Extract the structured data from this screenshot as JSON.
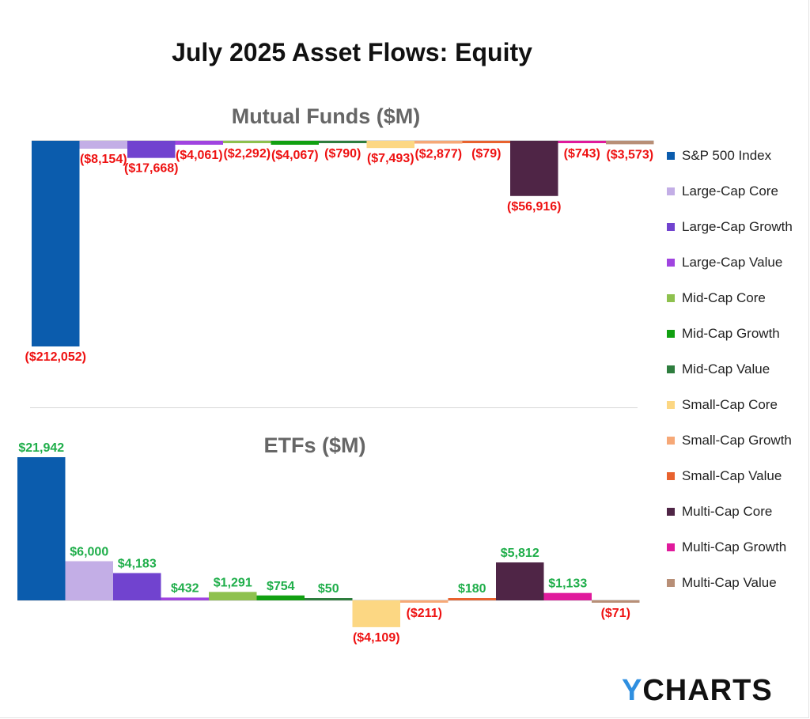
{
  "title": "July 2025 Asset Flows: Equity",
  "brand": {
    "mark": "Y",
    "rest": "CHARTS",
    "accent": "#2f8fe0"
  },
  "chart_data": [
    {
      "type": "bar",
      "title": "Mutual Funds ($M)",
      "categories": [
        "S&P 500 Index",
        "Large-Cap Core",
        "Large-Cap Growth",
        "Large-Cap Value",
        "Mid-Cap Core",
        "Mid-Cap Growth",
        "Mid-Cap Value",
        "Small-Cap Core",
        "Small-Cap Growth",
        "Small-Cap Value",
        "Multi-Cap Core",
        "Multi-Cap Growth",
        "Multi-Cap Value"
      ],
      "values": [
        -212052,
        -8154,
        -17668,
        -4061,
        -2292,
        -4067,
        -790,
        -7493,
        -2877,
        -79,
        -56916,
        -743,
        -3573
      ],
      "labels": [
        "($212,052)",
        "($8,154)",
        "($17,668)",
        "($4,061)",
        "($2,292)",
        "($4,067)",
        "($790)",
        "($7,493)",
        "($2,877)",
        "($79)",
        "($56,916)",
        "($743)",
        "($3,573)"
      ],
      "ylim": [
        -212052,
        0
      ],
      "grid": false,
      "legend": "right"
    },
    {
      "type": "bar",
      "title": "ETFs ($M)",
      "categories": [
        "S&P 500 Index",
        "Large-Cap Core",
        "Large-Cap Growth",
        "Large-Cap Value",
        "Mid-Cap Core",
        "Mid-Cap Growth",
        "Mid-Cap Value",
        "Small-Cap Core",
        "Small-Cap Growth",
        "Small-Cap Value",
        "Multi-Cap Core",
        "Multi-Cap Growth",
        "Multi-Cap Value"
      ],
      "values": [
        21942,
        6000,
        4183,
        432,
        1291,
        754,
        50,
        -4109,
        -211,
        180,
        5812,
        1133,
        -71
      ],
      "labels": [
        "$21,942",
        "$6,000",
        "$4,183",
        "$432",
        "$1,291",
        "$754",
        "$50",
        "($4,109)",
        "($211)",
        "$180",
        "$5,812",
        "$1,133",
        "($71)"
      ],
      "ylim": [
        -4109,
        21942
      ],
      "grid": false,
      "legend": "right"
    }
  ],
  "legend": [
    {
      "label": "S&P 500 Index",
      "color": "#0b5cad"
    },
    {
      "label": "Large-Cap Core",
      "color": "#c3aee6"
    },
    {
      "label": "Large-Cap Growth",
      "color": "#7143cf"
    },
    {
      "label": "Large-Cap Value",
      "color": "#a044e0"
    },
    {
      "label": "Mid-Cap Core",
      "color": "#8ec14e"
    },
    {
      "label": "Mid-Cap Growth",
      "color": "#11a011"
    },
    {
      "label": "Mid-Cap Value",
      "color": "#2e7d3e"
    },
    {
      "label": "Small-Cap Core",
      "color": "#fcd783"
    },
    {
      "label": "Small-Cap Growth",
      "color": "#f6a877"
    },
    {
      "label": "Small-Cap Value",
      "color": "#e8622e"
    },
    {
      "label": "Multi-Cap Core",
      "color": "#4f2546"
    },
    {
      "label": "Multi-Cap Growth",
      "color": "#e01a9c"
    },
    {
      "label": "Multi-Cap Value",
      "color": "#b88f77"
    }
  ],
  "colors": {
    "positive_label": "#1fae4a",
    "negative_label": "#ee1111",
    "panel_title": "#666666"
  }
}
